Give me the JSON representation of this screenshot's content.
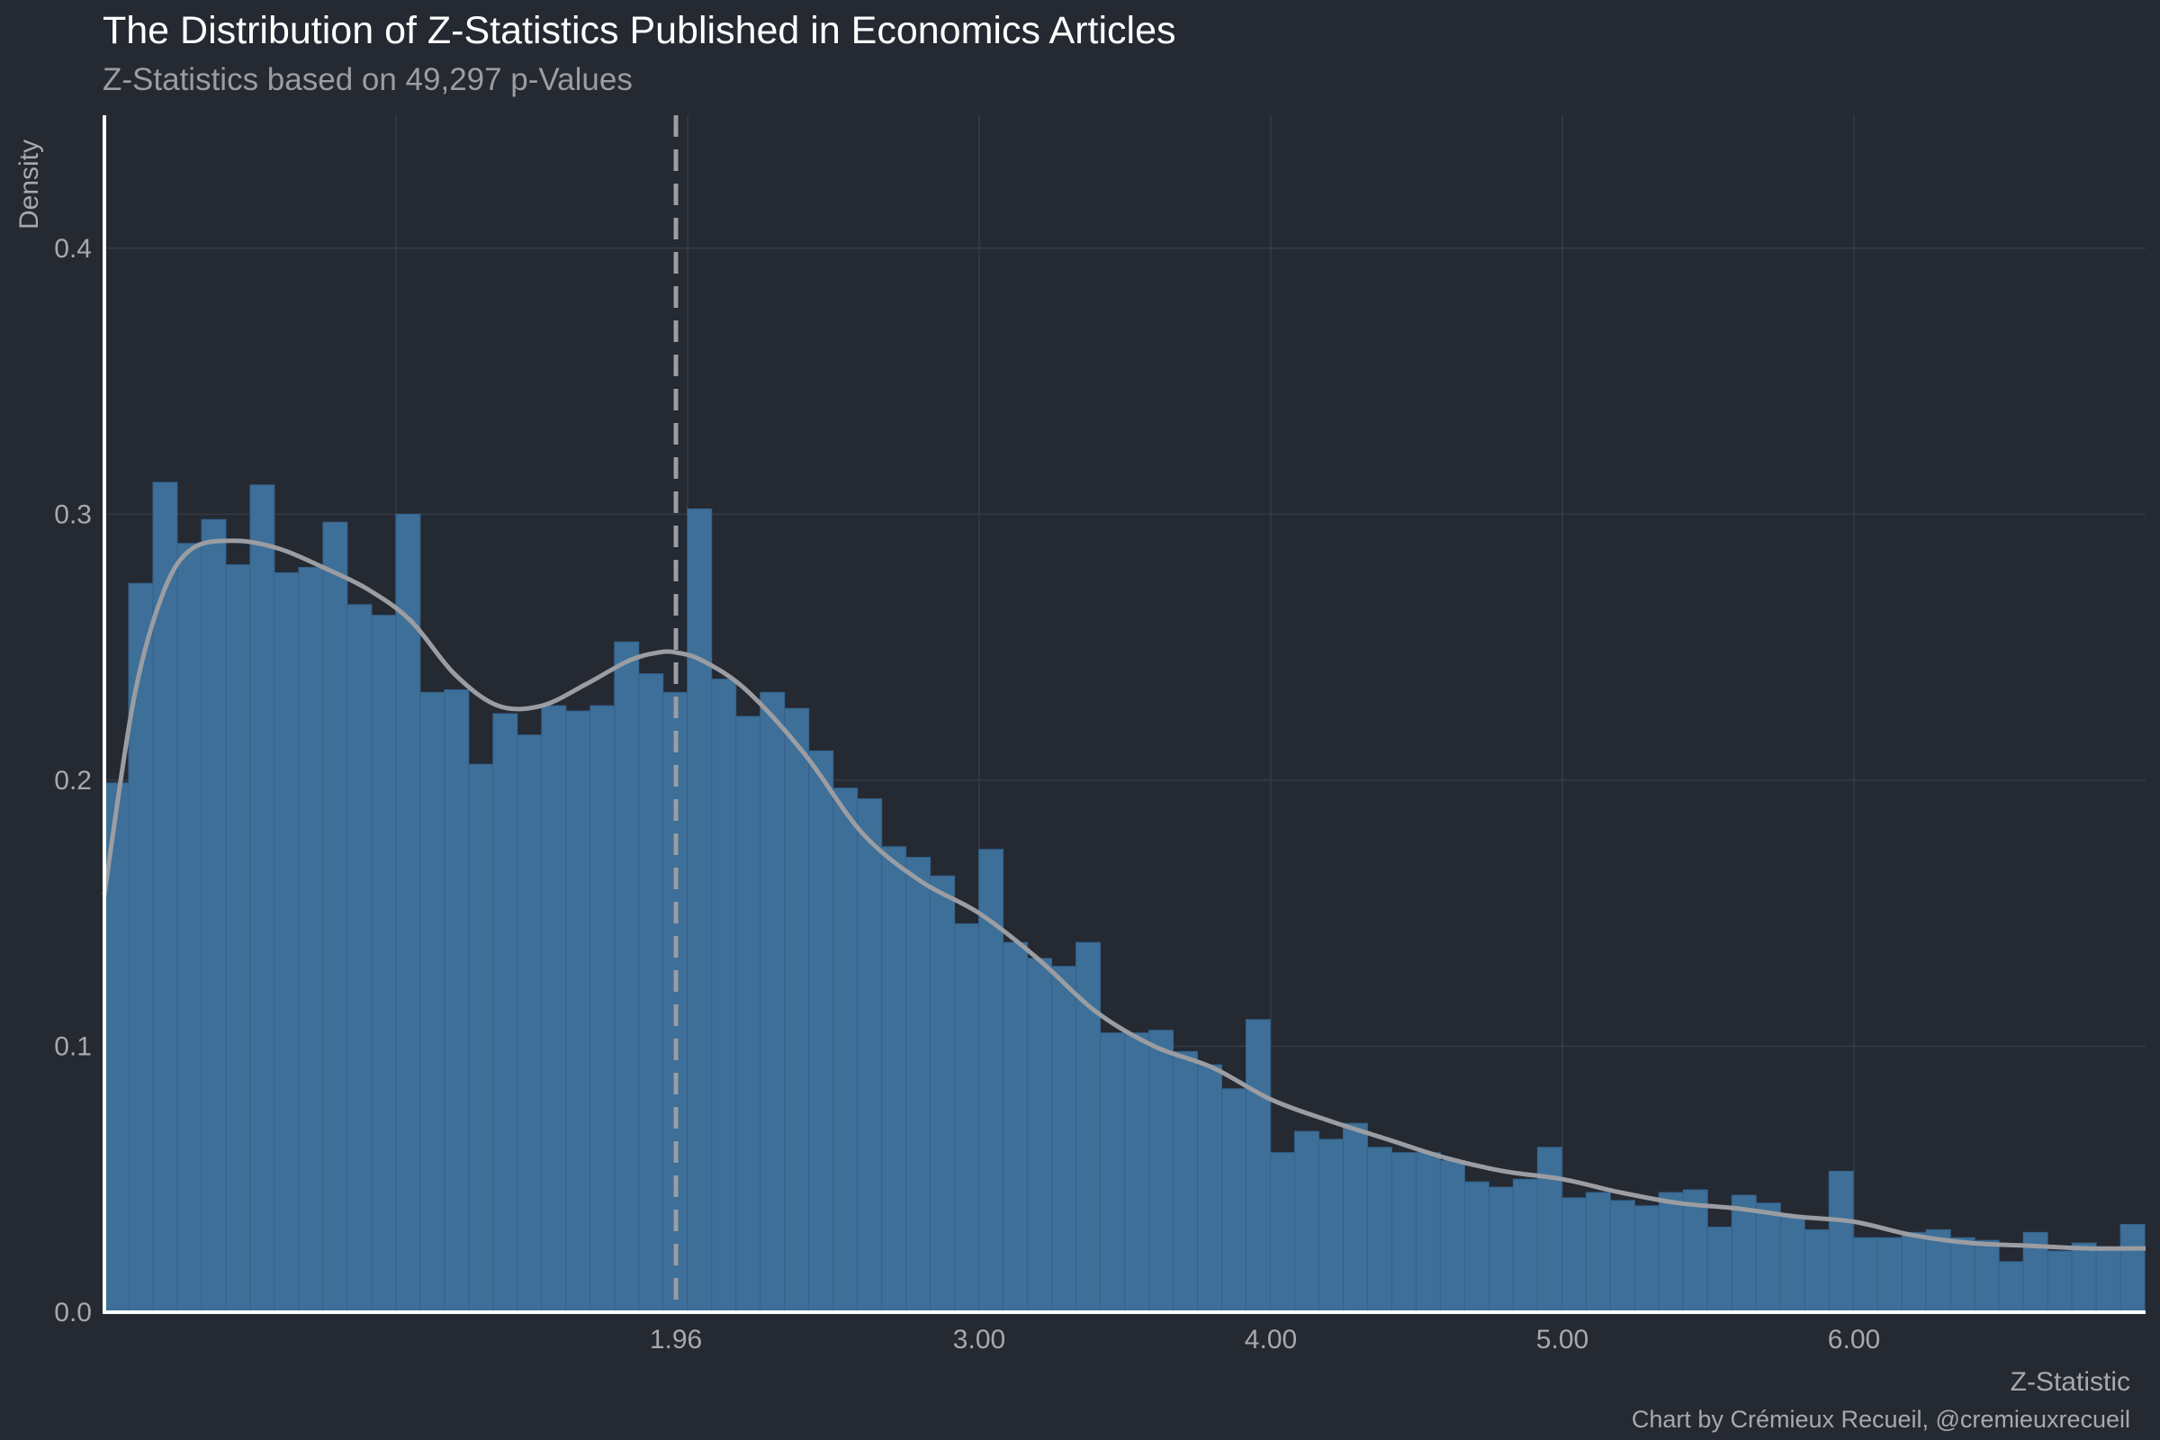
{
  "chart_data": {
    "type": "bar",
    "title": "The Distribution of Z-Statistics Published in Economics Articles",
    "subtitle": "Z-Statistics based on 49,297 p-Values",
    "xlabel": "Z-Statistic",
    "ylabel": "Density",
    "caption": "Chart by Crémieux Recueil, @cremieuxrecueil",
    "xlim": [
      0.0,
      7.0
    ],
    "ylim": [
      0.0,
      0.45
    ],
    "x_ticks": [
      {
        "value": 1.96,
        "label": "1.96"
      },
      {
        "value": 3.0,
        "label": "3.00"
      },
      {
        "value": 4.0,
        "label": "4.00"
      },
      {
        "value": 5.0,
        "label": "5.00"
      },
      {
        "value": 6.0,
        "label": "6.00"
      }
    ],
    "y_ticks": [
      {
        "value": 0.0,
        "label": "0.0"
      },
      {
        "value": 0.1,
        "label": "0.1"
      },
      {
        "value": 0.2,
        "label": "0.2"
      },
      {
        "value": 0.3,
        "label": "0.3"
      },
      {
        "value": 0.4,
        "label": "0.4"
      }
    ],
    "grid": true,
    "bin_width": 0.0833,
    "bin_start": 0.0,
    "histogram_values": [
      0.199,
      0.274,
      0.312,
      0.289,
      0.298,
      0.281,
      0.311,
      0.278,
      0.28,
      0.297,
      0.266,
      0.262,
      0.3,
      0.233,
      0.234,
      0.206,
      0.225,
      0.217,
      0.228,
      0.226,
      0.228,
      0.252,
      0.24,
      0.233,
      0.302,
      0.238,
      0.224,
      0.233,
      0.227,
      0.211,
      0.197,
      0.193,
      0.175,
      0.171,
      0.164,
      0.146,
      0.174,
      0.139,
      0.133,
      0.13,
      0.139,
      0.105,
      0.105,
      0.106,
      0.098,
      0.093,
      0.084,
      0.11,
      0.06,
      0.068,
      0.065,
      0.071,
      0.062,
      0.06,
      0.06,
      0.057,
      0.049,
      0.047,
      0.05,
      0.062,
      0.043,
      0.045,
      0.042,
      0.04,
      0.045,
      0.046,
      0.032,
      0.044,
      0.041,
      0.036,
      0.031,
      0.053,
      0.028,
      0.028,
      0.03,
      0.031,
      0.028,
      0.027,
      0.019,
      0.03,
      0.023,
      0.026,
      0.024,
      0.033
    ],
    "density_curve": {
      "x": [
        0.0,
        0.1,
        0.2,
        0.3,
        0.45,
        0.6,
        0.75,
        0.9,
        1.05,
        1.2,
        1.35,
        1.5,
        1.65,
        1.8,
        1.9,
        1.96,
        2.05,
        2.2,
        2.4,
        2.6,
        2.8,
        3.0,
        3.2,
        3.4,
        3.6,
        3.8,
        4.0,
        4.2,
        4.4,
        4.6,
        4.8,
        5.0,
        5.2,
        5.4,
        5.6,
        5.8,
        6.0,
        6.2,
        6.4,
        6.6,
        6.8,
        7.0
      ],
      "y": [
        0.157,
        0.23,
        0.27,
        0.287,
        0.29,
        0.287,
        0.28,
        0.272,
        0.26,
        0.24,
        0.228,
        0.228,
        0.236,
        0.245,
        0.248,
        0.248,
        0.245,
        0.234,
        0.21,
        0.18,
        0.162,
        0.15,
        0.133,
        0.113,
        0.1,
        0.092,
        0.08,
        0.072,
        0.065,
        0.058,
        0.053,
        0.05,
        0.045,
        0.041,
        0.039,
        0.036,
        0.034,
        0.029,
        0.026,
        0.025,
        0.024,
        0.024
      ]
    },
    "reference_line": {
      "x": 1.96,
      "style": "dashed"
    },
    "colors": {
      "background": "#242932",
      "bars": "#3d6f98",
      "density_line": "#9b9da2",
      "reference_line": "#9b9da2",
      "grid": "#363b45",
      "axis_lines": "#ffffff"
    }
  }
}
